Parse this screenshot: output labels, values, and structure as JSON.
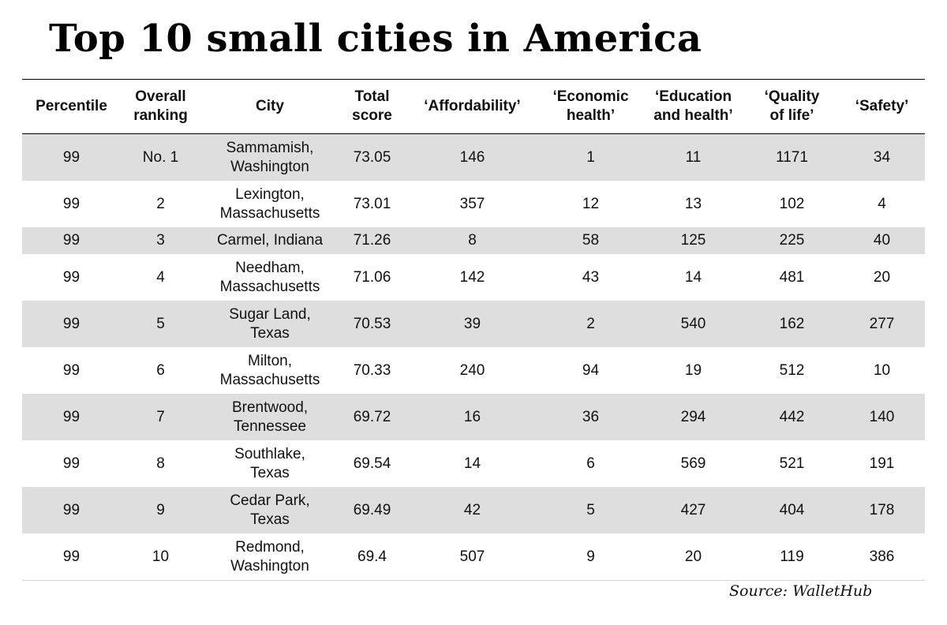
{
  "title": "Top 10 small cities in America",
  "source": "Source: WalletHub",
  "chart_data": {
    "type": "table",
    "title": "Top 10 small cities in America",
    "columns": [
      "Percentile",
      "Overall ranking",
      "City",
      "Total score",
      "‘Affordability’",
      "‘Economic health’",
      "‘Education and health’",
      "‘Quality of life’",
      "‘Safety’"
    ],
    "header_lines": [
      [
        "Percentile"
      ],
      [
        "Overall",
        "ranking"
      ],
      [
        "City"
      ],
      [
        "Total",
        "score"
      ],
      [
        "‘Affordability’"
      ],
      [
        "‘Economic",
        "health’"
      ],
      [
        "‘Education",
        "and health’"
      ],
      [
        "‘Quality",
        "of life’"
      ],
      [
        "‘Safety’"
      ]
    ],
    "rows": [
      {
        "percentile": "99",
        "ranking": "No. 1",
        "city_line1": "Sammamish,",
        "city_line2": "Washington",
        "total": "73.05",
        "affordability": "146",
        "economic": "1",
        "education": "11",
        "quality": "1171",
        "safety": "34"
      },
      {
        "percentile": "99",
        "ranking": "2",
        "city_line1": "Lexington,",
        "city_line2": "Massachusetts",
        "total": "73.01",
        "affordability": "357",
        "economic": "12",
        "education": "13",
        "quality": "102",
        "safety": "4"
      },
      {
        "percentile": "99",
        "ranking": "3",
        "city_line1": "Carmel, Indiana",
        "city_line2": "",
        "total": "71.26",
        "affordability": "8",
        "economic": "58",
        "education": "125",
        "quality": "225",
        "safety": "40"
      },
      {
        "percentile": "99",
        "ranking": "4",
        "city_line1": "Needham,",
        "city_line2": "Massachusetts",
        "total": "71.06",
        "affordability": "142",
        "economic": "43",
        "education": "14",
        "quality": "481",
        "safety": "20"
      },
      {
        "percentile": "99",
        "ranking": "5",
        "city_line1": "Sugar Land,",
        "city_line2": "Texas",
        "total": "70.53",
        "affordability": "39",
        "economic": "2",
        "education": "540",
        "quality": "162",
        "safety": "277"
      },
      {
        "percentile": "99",
        "ranking": "6",
        "city_line1": "Milton,",
        "city_line2": "Massachusetts",
        "total": "70.33",
        "affordability": "240",
        "economic": "94",
        "education": "19",
        "quality": "512",
        "safety": "10"
      },
      {
        "percentile": "99",
        "ranking": "7",
        "city_line1": "Brentwood,",
        "city_line2": "Tennessee",
        "total": "69.72",
        "affordability": "16",
        "economic": "36",
        "education": "294",
        "quality": "442",
        "safety": "140"
      },
      {
        "percentile": "99",
        "ranking": "8",
        "city_line1": "Southlake,",
        "city_line2": "Texas",
        "total": "69.54",
        "affordability": "14",
        "economic": "6",
        "education": "569",
        "quality": "521",
        "safety": "191"
      },
      {
        "percentile": "99",
        "ranking": "9",
        "city_line1": "Cedar Park,",
        "city_line2": "Texas",
        "total": "69.49",
        "affordability": "42",
        "economic": "5",
        "education": "427",
        "quality": "404",
        "safety": "178"
      },
      {
        "percentile": "99",
        "ranking": "10",
        "city_line1": "Redmond,",
        "city_line2": "Washington",
        "total": "69.4",
        "affordability": "507",
        "economic": "9",
        "education": "20",
        "quality": "119",
        "safety": "386"
      }
    ],
    "row_shading": [
      "#dedede",
      "#ffffff"
    ]
  }
}
